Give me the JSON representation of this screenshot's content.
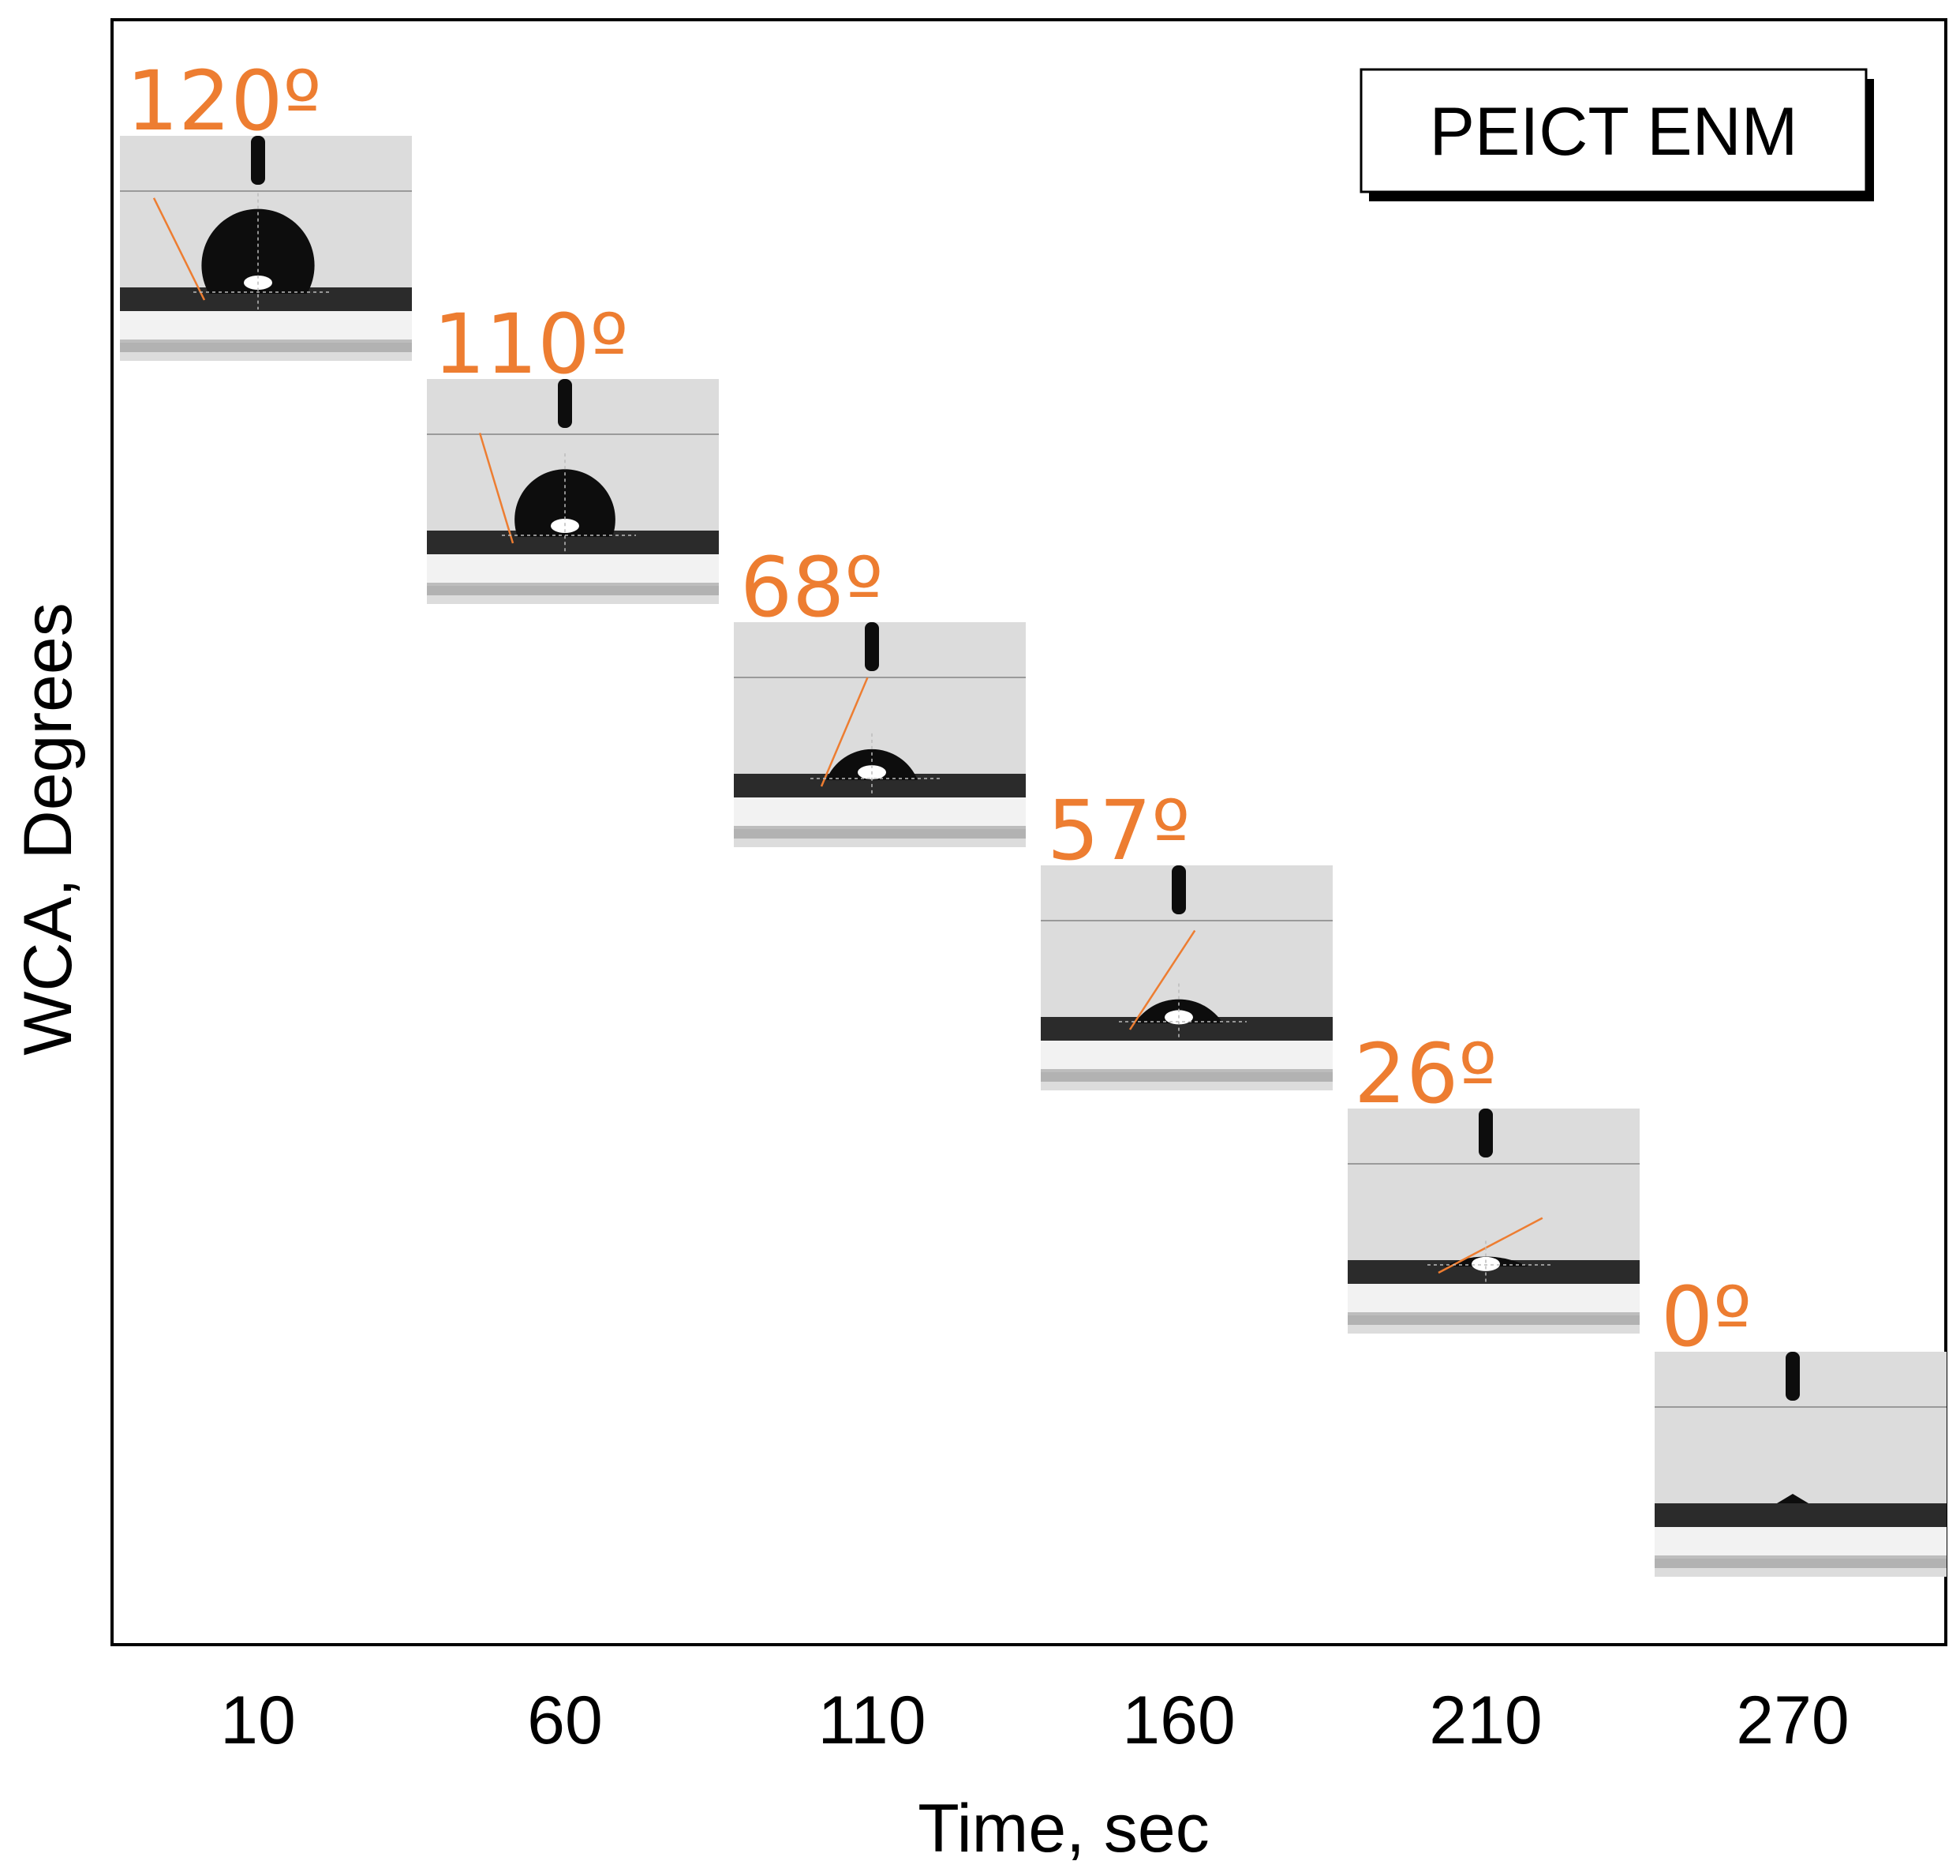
{
  "colors": {
    "angle_text": "#ED7D31",
    "axis": "#000000",
    "photo_bg": "#dcdcdc",
    "substrate": "#2b2b2b",
    "drop": "#0d0d0d",
    "tangent": "#ED7D31"
  },
  "legend": {
    "label": "PEICT ENM"
  },
  "chart_data": {
    "type": "scatter",
    "title": "",
    "xlabel": "Time, sec",
    "ylabel": "WCA, Degrees",
    "categories": [
      "10",
      "60",
      "110",
      "160",
      "210",
      "270"
    ],
    "x": [
      10,
      60,
      110,
      160,
      210,
      270
    ],
    "values": [
      120,
      110,
      68,
      57,
      26,
      0
    ],
    "point_labels": [
      "120º",
      "110º",
      "68º",
      "57º",
      "26º",
      "0º"
    ],
    "marker": "droplet-photo",
    "series": [
      {
        "name": "PEICT ENM",
        "values": [
          120,
          110,
          68,
          57,
          26,
          0
        ]
      }
    ]
  }
}
